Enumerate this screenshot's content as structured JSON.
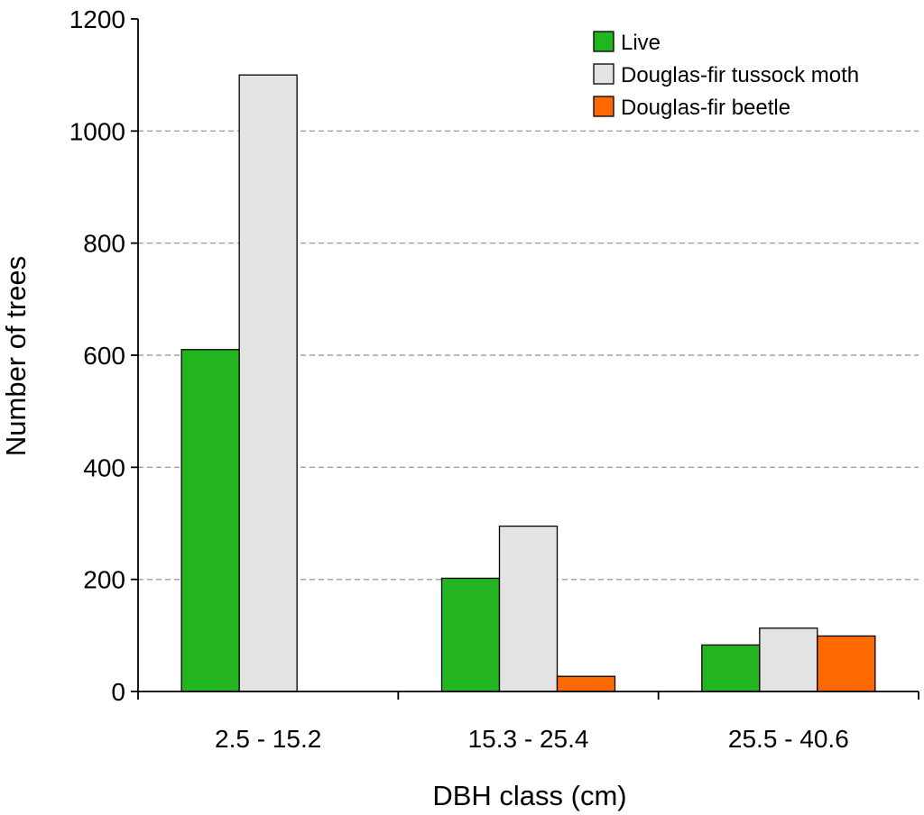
{
  "chart_data": {
    "type": "bar",
    "title": "",
    "xlabel": "DBH class (cm)",
    "ylabel": "Number of trees",
    "categories": [
      "2.5 - 15.2",
      "15.3 - 25.4",
      "25.5 - 40.6"
    ],
    "ylim": [
      0,
      1200
    ],
    "yticks": [
      "0",
      "200",
      "400",
      "600",
      "800",
      "1000",
      "1200"
    ],
    "grid": "horizontal dashed",
    "legend_position": "top-right",
    "series": [
      {
        "name": "Live",
        "color": "#22b520",
        "values": [
          610,
          202,
          83
        ]
      },
      {
        "name": "Douglas-fir tussock moth",
        "color": "#e3e3e3",
        "values": [
          1100,
          295,
          113
        ]
      },
      {
        "name": "Douglas-fir beetle",
        "color": "#ff6a00",
        "values": [
          0,
          27,
          99
        ]
      }
    ]
  }
}
